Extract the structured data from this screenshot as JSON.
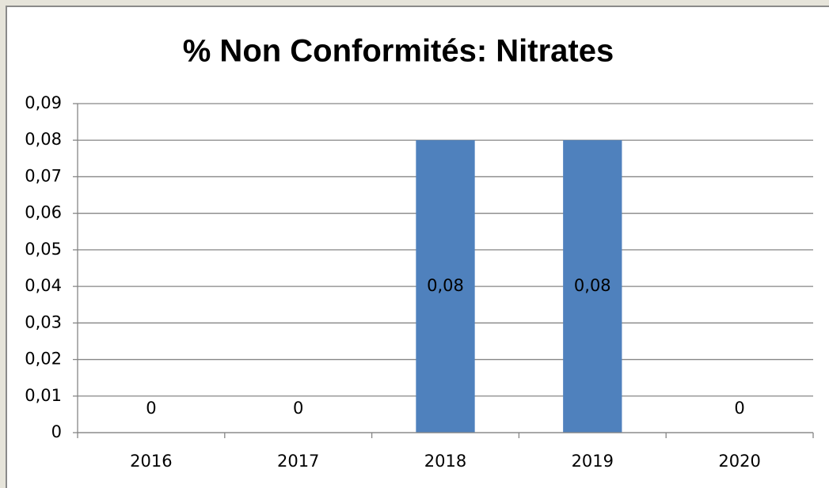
{
  "chart_data": {
    "type": "bar",
    "title": "%  Non Conformités: Nitrates",
    "categories": [
      "2016",
      "2017",
      "2018",
      "2019",
      "2020"
    ],
    "values": [
      0,
      0,
      0.08,
      0.08,
      0
    ],
    "value_labels": [
      "0",
      "0",
      "0,08",
      "0,08",
      "0"
    ],
    "color": "#4f81bd",
    "ylim": [
      0,
      0.09
    ],
    "yticks": [
      0,
      {
        "value": 0.01,
        "label": "0,01"
      },
      {
        "value": 0.02,
        "label": "0,02"
      },
      {
        "value": 0.03,
        "label": "0,03"
      },
      {
        "value": 0.04,
        "label": "0,04"
      },
      {
        "value": 0.05,
        "label": "0,05"
      },
      {
        "value": 0.06,
        "label": "0,06"
      },
      {
        "value": 0.07,
        "label": "0,07"
      },
      {
        "value": 0.08,
        "label": "0,08"
      },
      {
        "value": 0.09,
        "label": "0,09"
      }
    ],
    "grid": true
  }
}
